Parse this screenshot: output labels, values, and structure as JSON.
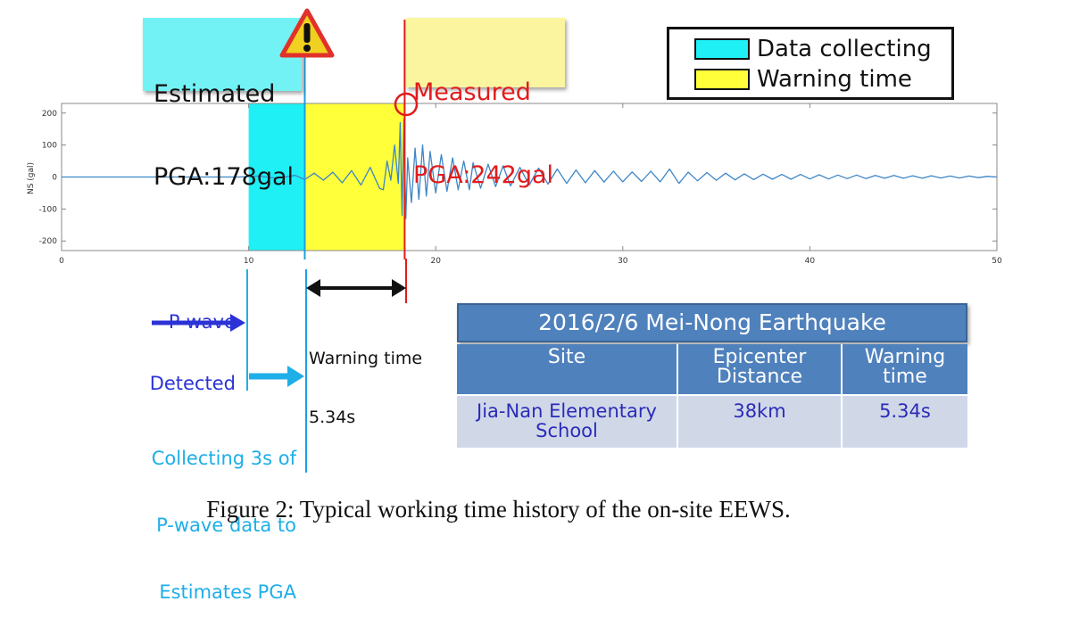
{
  "chart_data": {
    "type": "line",
    "ylabel": "NS (gal)",
    "xlim": [
      0,
      50
    ],
    "ylim": [
      -230,
      230
    ],
    "xticks": [
      0,
      10,
      20,
      30,
      40,
      50
    ],
    "yticks": [
      200,
      100,
      0,
      -100,
      -200
    ],
    "regions": [
      {
        "name": "Data collecting",
        "x": [
          10,
          13
        ],
        "color": "#1ef0f5"
      },
      {
        "name": "Warning time",
        "x": [
          13,
          18.34
        ],
        "color": "#ffff3a"
      }
    ],
    "markers": [
      {
        "name": "estimated",
        "x": 13,
        "color": "#1e9fe0"
      },
      {
        "name": "measured",
        "x": 18.34,
        "color": "#e21b1b"
      }
    ],
    "series": [
      {
        "color": "#3d86c6",
        "x": [
          0,
          5,
          9.5,
          10.5,
          11.5,
          12.5,
          13,
          13.5,
          14,
          14.5,
          15,
          15.5,
          16,
          16.5,
          17,
          17.2,
          17.4,
          17.6,
          17.8,
          18,
          18.1,
          18.2,
          18.3,
          18.4,
          18.5,
          18.7,
          18.9,
          19.1,
          19.3,
          19.5,
          19.7,
          20,
          20.3,
          20.6,
          20.9,
          21.2,
          21.5,
          21.8,
          22,
          22.4,
          22.8,
          23.2,
          23.6,
          24,
          24.5,
          25,
          25.5,
          26,
          26.5,
          27,
          27.5,
          28,
          28.5,
          29,
          29.5,
          30,
          30.5,
          31,
          31.5,
          32,
          32.5,
          33,
          33.5,
          34,
          34.5,
          35,
          35.5,
          36,
          36.5,
          37,
          37.5,
          38,
          38.5,
          39,
          39.5,
          40,
          40.5,
          41,
          41.5,
          42,
          42.5,
          43,
          43.5,
          44,
          44.5,
          45,
          45.5,
          46,
          46.5,
          47,
          47.5,
          48,
          48.5,
          49,
          49.5,
          50
        ],
        "values": [
          0,
          0,
          0,
          3,
          -4,
          5,
          -8,
          12,
          -10,
          15,
          -18,
          20,
          -25,
          30,
          -35,
          -40,
          50,
          -10,
          100,
          -20,
          170,
          -120,
          180,
          -130,
          60,
          -80,
          90,
          -70,
          100,
          -60,
          80,
          -50,
          70,
          -45,
          60,
          -40,
          50,
          -40,
          45,
          -35,
          40,
          -30,
          35,
          -28,
          30,
          -25,
          28,
          -22,
          25,
          -20,
          22,
          -18,
          20,
          -16,
          18,
          -15,
          16,
          -14,
          18,
          -15,
          25,
          -20,
          15,
          -12,
          14,
          -10,
          12,
          -9,
          10,
          -8,
          9,
          -7,
          8,
          -7,
          8,
          -6,
          7,
          -6,
          6,
          -5,
          6,
          -5,
          5,
          -4,
          5,
          -4,
          4,
          -4,
          4,
          -3,
          3,
          -3,
          3,
          -2,
          2,
          0
        ]
      }
    ]
  },
  "estimated": {
    "line1": "Estimated",
    "line2": "PGA:178gal"
  },
  "measured": {
    "line1": "Measured",
    "line2": "PGA:242gal"
  },
  "legend": {
    "items": [
      {
        "label": "Data collecting",
        "color": "#1ef0f5"
      },
      {
        "label": "Warning time",
        "color": "#ffff3a"
      }
    ]
  },
  "annotations": {
    "pwave": {
      "line1": "P-wave",
      "line2": "Detected",
      "color": "#2b33d6"
    },
    "collecting": {
      "line1": "Collecting 3s of",
      "line2": "P-wave data to",
      "line3": "Estimates PGA",
      "color": "#1eaee8"
    },
    "warning": {
      "line1": "Warning time",
      "line2": "5.34s"
    }
  },
  "table": {
    "title": "2016/2/6 Mei-Nong Earthquake",
    "headers": [
      "Site",
      "Epicenter\nDistance",
      "Warning\ntime"
    ],
    "row": [
      "Jia-Nan Elementary\nSchool",
      "38km",
      "5.34s"
    ]
  },
  "caption": "Figure 2: Typical working time history of the on-site EEWS."
}
